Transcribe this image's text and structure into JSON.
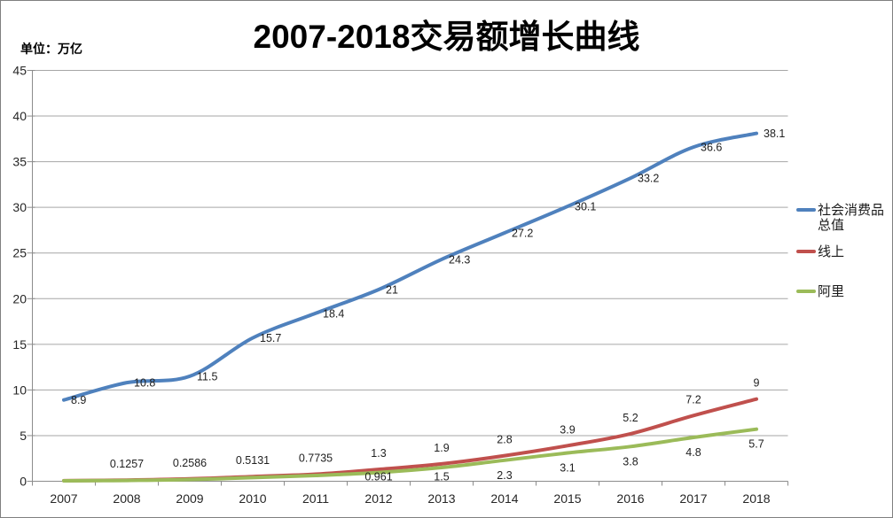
{
  "window": {
    "background": "#FFFFFF",
    "border_color": "#808080"
  },
  "chart": {
    "title": "2007-2018交易额增长曲线",
    "unit_label": "单位：万亿",
    "legend": {
      "position": "right",
      "items": [
        {
          "label": "社会消费品总值",
          "color": "#4F81BD"
        },
        {
          "label": "线上",
          "color": "#C0504D"
        },
        {
          "label": "阿里",
          "color": "#9BBB59"
        }
      ]
    }
  },
  "chart_data": {
    "type": "line",
    "title": "2007-2018交易额增长曲线",
    "unit": "万亿",
    "categories": [
      "2007",
      "2008",
      "2009",
      "2010",
      "2011",
      "2012",
      "2013",
      "2014",
      "2015",
      "2016",
      "2017",
      "2018"
    ],
    "y_axis": {
      "min": 0,
      "max": 45,
      "step": 5,
      "tick_labels": [
        "0",
        "5",
        "10",
        "15",
        "20",
        "25",
        "30",
        "35",
        "40",
        "45"
      ]
    },
    "grid": true,
    "line_smoothing": true,
    "legend_position": "right",
    "axis_color": "#8C8C8C",
    "gridline_color": "#A6A6A6",
    "tick_label_color": "#262626",
    "data_label_color": "#1F1F1F",
    "series": [
      {
        "name": "社会消费品总值",
        "color": "#4F81BD",
        "values": [
          8.9,
          10.8,
          11.5,
          15.7,
          18.4,
          21,
          24.3,
          27.2,
          30.1,
          33.2,
          36.6,
          38.1
        ],
        "data_labels": [
          "8.9",
          "10.8",
          "11.5",
          "15.7",
          "18.4",
          "21",
          "24.3",
          "27.2",
          "30.1",
          "33.2",
          "36.6",
          "38.1"
        ],
        "label_placement": "right"
      },
      {
        "name": "线上",
        "color": "#C0504D",
        "values": [
          0.06,
          0.1257,
          0.2586,
          0.5131,
          0.7735,
          1.3,
          1.9,
          2.8,
          3.9,
          5.2,
          7.2,
          9
        ],
        "data_labels": [
          "",
          "0.1257",
          "0.2586",
          "0.5131",
          "0.7735",
          "1.3",
          "1.9",
          "2.8",
          "3.9",
          "5.2",
          "7.2",
          "9"
        ],
        "label_placement": "above"
      },
      {
        "name": "阿里",
        "color": "#9BBB59",
        "values": [
          0.04,
          0.09,
          0.19,
          0.4,
          0.63,
          0.961,
          1.5,
          2.3,
          3.1,
          3.8,
          4.8,
          5.7
        ],
        "data_labels": [
          "",
          "",
          "",
          "",
          "",
          "0.961",
          "1.5",
          "2.3",
          "3.1",
          "3.8",
          "4.8",
          "5.7"
        ],
        "label_placement": "below"
      }
    ]
  }
}
